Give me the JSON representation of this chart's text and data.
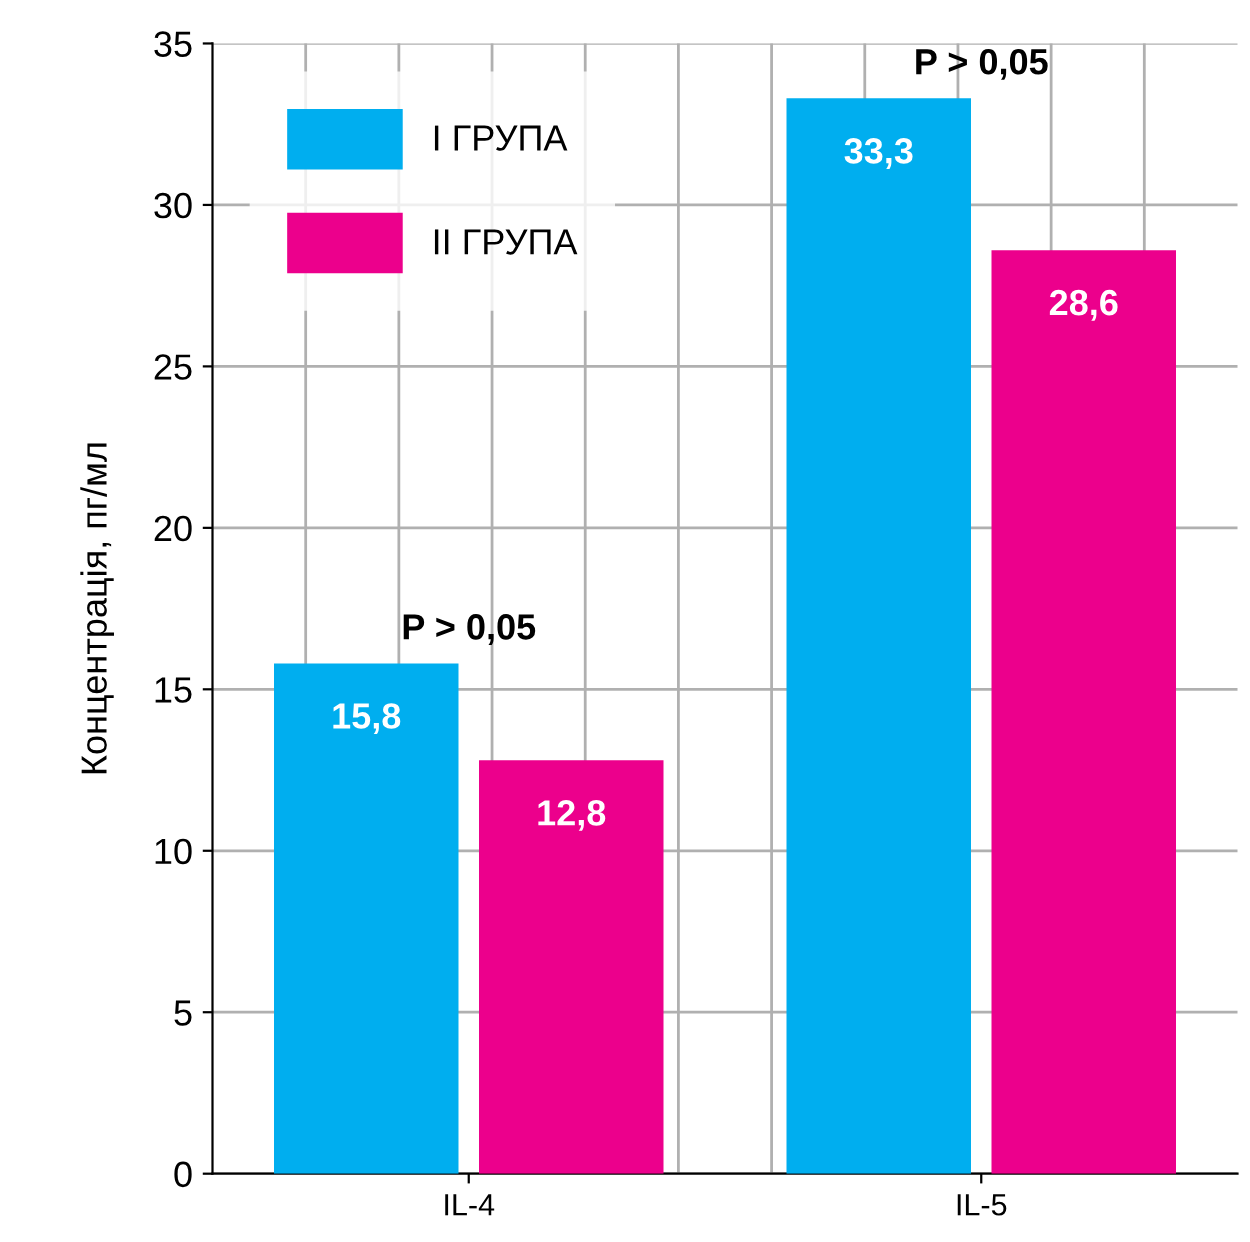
{
  "chart_data": {
    "type": "bar",
    "ylabel": "Концентрація, пг/мл",
    "categories": [
      "IL-4",
      "IL-5"
    ],
    "series": [
      {
        "name": "I ГРУПА",
        "color": "#00aeef",
        "values": [
          15.8,
          33.3
        ],
        "value_labels": [
          "15,8",
          "33,3"
        ]
      },
      {
        "name": "II ГРУПА",
        "color": "#ec008c",
        "values": [
          12.8,
          28.6
        ],
        "value_labels": [
          "12,8",
          "28,6"
        ]
      }
    ],
    "ylim": [
      0,
      35
    ],
    "yticks": [
      0,
      5,
      10,
      15,
      20,
      25,
      30,
      35
    ],
    "annotations": [
      "P > 0,05",
      "P > 0,05"
    ],
    "grid": true,
    "legend": "top left"
  }
}
